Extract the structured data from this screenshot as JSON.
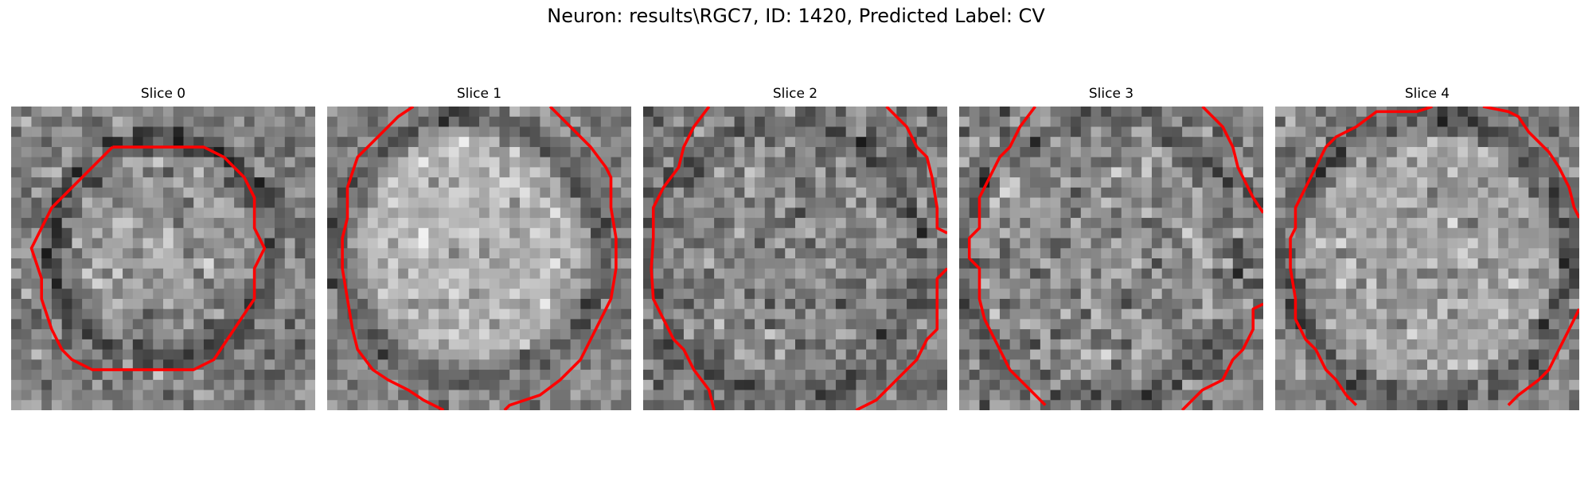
{
  "figure": {
    "suptitle": "Neuron: results\\RGC7, ID: 1420, Predicted Label: CV",
    "contour_color": "#ff0000",
    "colormap": "gray"
  },
  "panels": [
    {
      "title": "Slice 0",
      "center_brightness": "bright",
      "contour": "closed-circle"
    },
    {
      "title": "Slice 1",
      "center_brightness": "bright",
      "contour": "partial-circle"
    },
    {
      "title": "Slice 2",
      "center_brightness": "medium",
      "contour": "partial-circle"
    },
    {
      "title": "Slice 3",
      "center_brightness": "medium",
      "contour": "partial-circle"
    },
    {
      "title": "Slice 4",
      "center_brightness": "bright",
      "contour": "partial-circle"
    }
  ]
}
